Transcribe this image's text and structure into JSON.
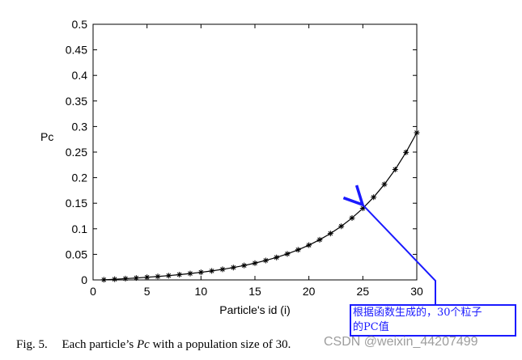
{
  "chart_data": {
    "type": "line",
    "xlabel": "Particle's id (i)",
    "ylabel": "Pc",
    "xlim": [
      0,
      30
    ],
    "ylim": [
      0,
      0.5
    ],
    "xticks": [
      0,
      5,
      10,
      15,
      20,
      25,
      30
    ],
    "yticks": [
      0,
      0.05,
      0.1,
      0.15,
      0.2,
      0.25,
      0.3,
      0.35,
      0.4,
      0.45,
      0.5
    ],
    "xticklabels": [
      "0",
      "5",
      "10",
      "15",
      "20",
      "25",
      "30"
    ],
    "yticklabels": [
      "0",
      "0.05",
      "0.1",
      "0.15",
      "0.2",
      "0.25",
      "0.3",
      "0.35",
      "0.4",
      "0.45",
      "0.5"
    ],
    "marker": "asterisk",
    "line_color": "#000000",
    "grid": false,
    "series": [
      {
        "x": [
          1,
          2,
          3,
          4,
          5,
          6,
          7,
          8,
          9,
          10,
          11,
          12,
          13,
          14,
          15,
          16,
          17,
          18,
          19,
          20,
          21,
          22,
          23,
          24,
          25,
          26,
          27,
          28,
          29,
          30
        ],
        "values": [
          0.0003,
          0.0013,
          0.0025,
          0.0038,
          0.0052,
          0.0067,
          0.0084,
          0.0103,
          0.0125,
          0.0149,
          0.0176,
          0.0207,
          0.0242,
          0.0282,
          0.0328,
          0.038,
          0.044,
          0.0509,
          0.0589,
          0.068,
          0.0786,
          0.0908,
          0.1049,
          0.1211,
          0.14,
          0.1617,
          0.187,
          0.216,
          0.2495,
          0.288
        ]
      }
    ]
  },
  "caption": {
    "figure": "Fig. 5.",
    "text_before": "Each particle’s",
    "symbol": "Pc",
    "text_after": "with a population size of 30."
  },
  "annotation": {
    "line1": "根据函数生成的，30个粒子",
    "line2": "的PC值",
    "color": "#1a1aff"
  },
  "watermark": "CSDN @weixin_44207499"
}
